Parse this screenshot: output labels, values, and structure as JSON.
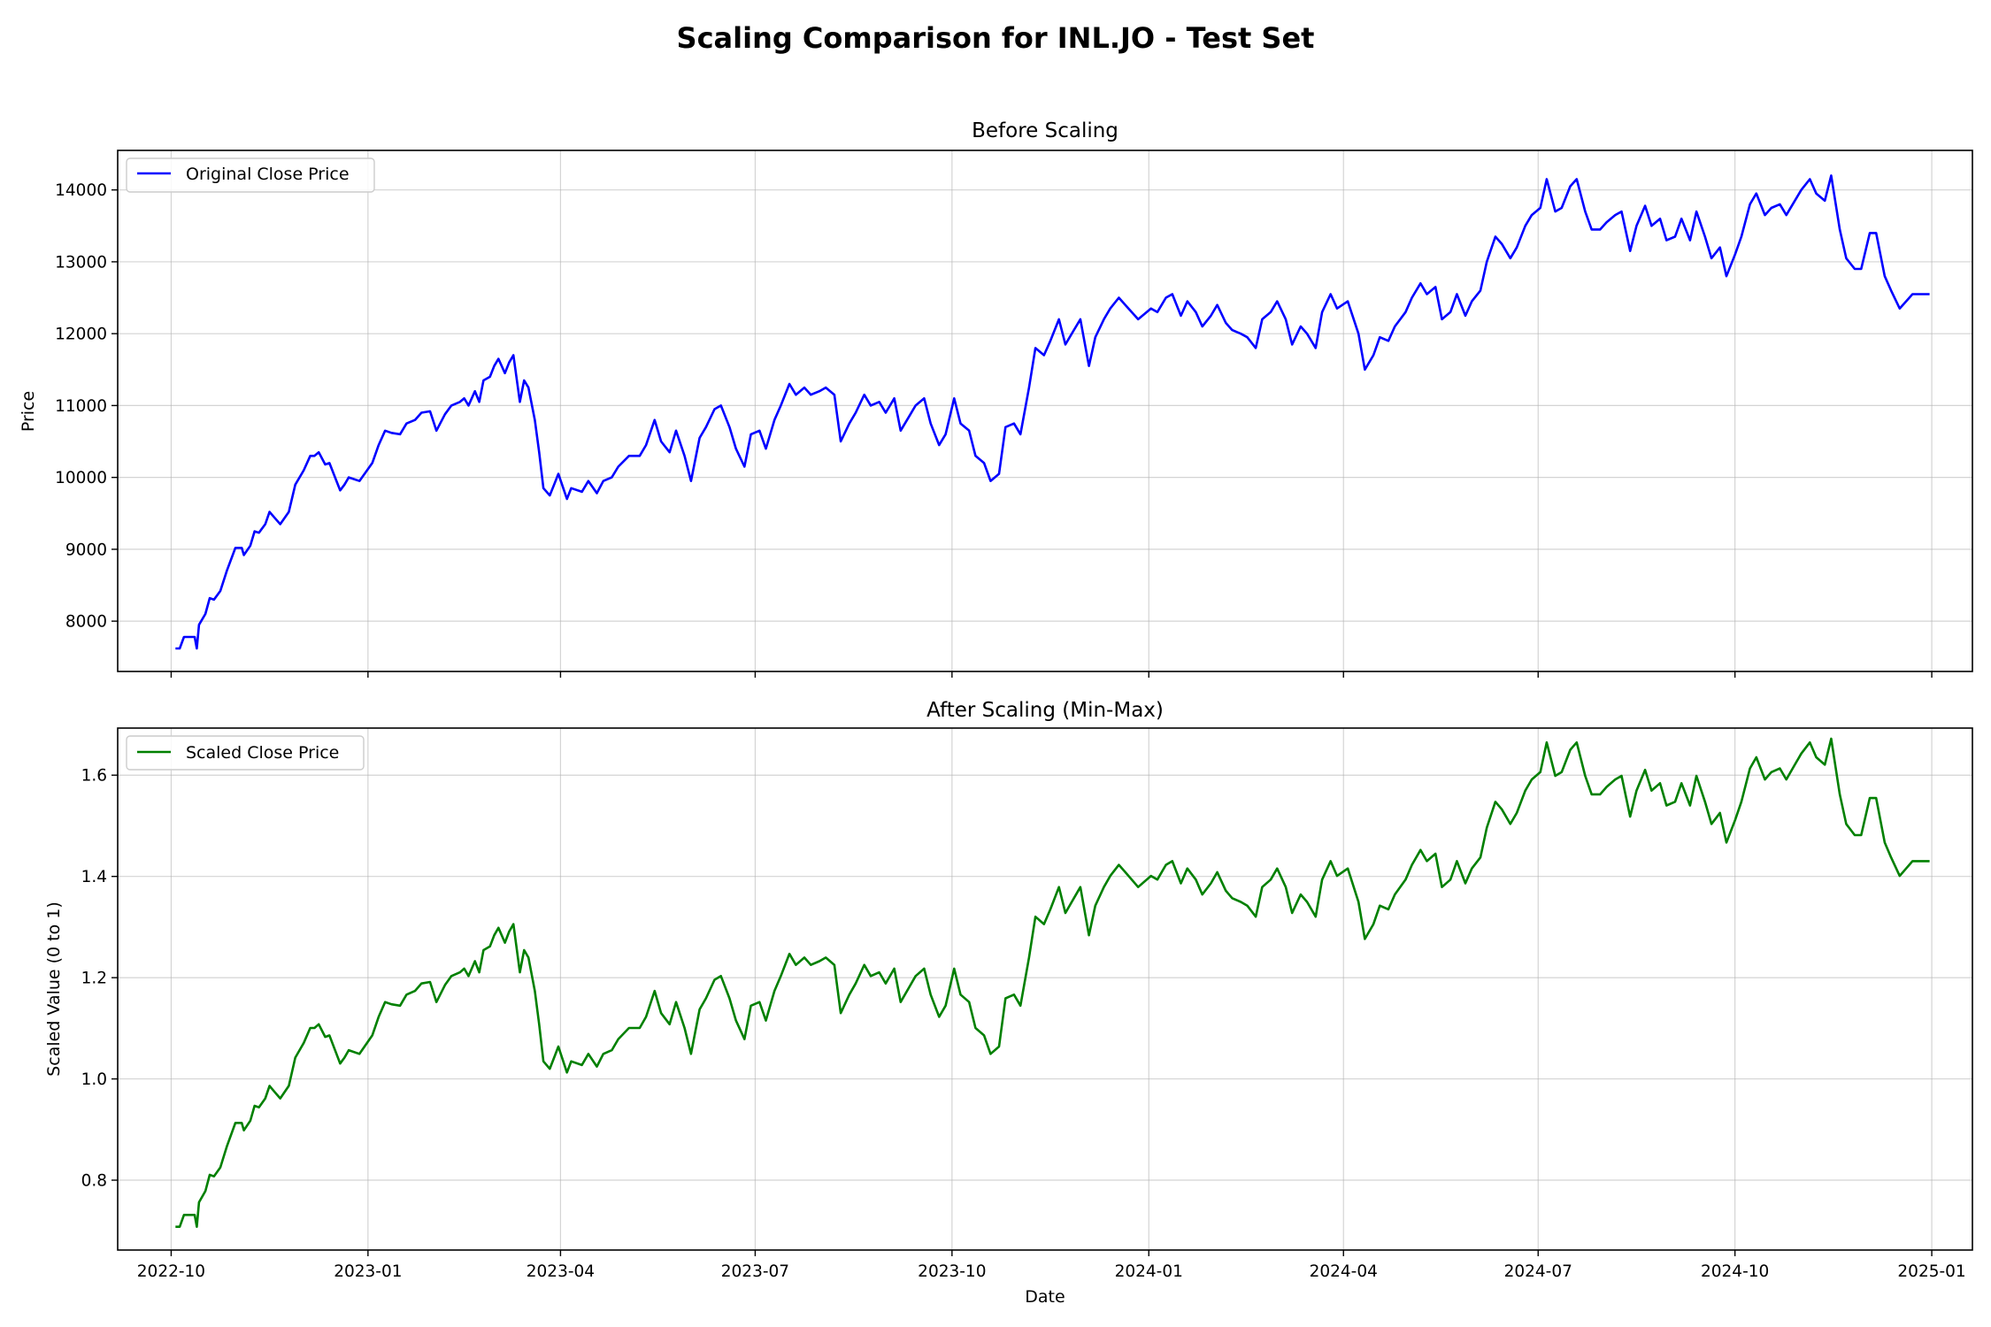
{
  "figure": {
    "title": "Scaling Comparison for INL.JO - Test Set"
  },
  "chart_data": [
    {
      "type": "line",
      "title": "Before Scaling",
      "xlabel": "",
      "ylabel": "Price",
      "grid": true,
      "legend_position": "top-left",
      "ylim": [
        7300,
        14550
      ],
      "yticks": [
        8000,
        9000,
        10000,
        11000,
        12000,
        13000,
        14000
      ],
      "xlim": [
        "2022-09-06",
        "2025-01-20"
      ],
      "xticks": [
        "2022-10",
        "2023-01",
        "2023-04",
        "2023-07",
        "2023-10",
        "2024-01",
        "2024-04",
        "2024-07",
        "2024-10",
        "2025-01"
      ],
      "xticks_dates": [
        "2022-10-01",
        "2023-01-01",
        "2023-04-01",
        "2023-07-01",
        "2023-10-01",
        "2024-01-01",
        "2024-04-01",
        "2024-07-01",
        "2024-10-01",
        "2025-01-01"
      ],
      "show_xtick_labels": false,
      "series": [
        {
          "name": "Original Close Price",
          "color": "#0000ff",
          "x": [
            "2022-10-03",
            "2022-10-05",
            "2022-10-07",
            "2022-10-10",
            "2022-10-12",
            "2022-10-13",
            "2022-10-14",
            "2022-10-17",
            "2022-10-19",
            "2022-10-21",
            "2022-10-24",
            "2022-10-27",
            "2022-10-31",
            "2022-11-03",
            "2022-11-04",
            "2022-11-07",
            "2022-11-09",
            "2022-11-11",
            "2022-11-14",
            "2022-11-16",
            "2022-11-18",
            "2022-11-21",
            "2022-11-25",
            "2022-11-28",
            "2022-12-01",
            "2022-12-02",
            "2022-12-05",
            "2022-12-07",
            "2022-12-09",
            "2022-12-12",
            "2022-12-14",
            "2022-12-19",
            "2022-12-21",
            "2022-12-23",
            "2022-12-28",
            "2023-01-03",
            "2023-01-06",
            "2023-01-09",
            "2023-01-12",
            "2023-01-16",
            "2023-01-19",
            "2023-01-23",
            "2023-01-26",
            "2023-01-30",
            "2023-02-02",
            "2023-02-06",
            "2023-02-09",
            "2023-02-13",
            "2023-02-15",
            "2023-02-17",
            "2023-02-20",
            "2023-02-22",
            "2023-02-24",
            "2023-02-27",
            "2023-03-01",
            "2023-03-03",
            "2023-03-06",
            "2023-03-08",
            "2023-03-10",
            "2023-03-13",
            "2023-03-15",
            "2023-03-17",
            "2023-03-20",
            "2023-03-22",
            "2023-03-24",
            "2023-03-27",
            "2023-03-29",
            "2023-03-31",
            "2023-04-04",
            "2023-04-06",
            "2023-04-11",
            "2023-04-14",
            "2023-04-18",
            "2023-04-21",
            "2023-04-25",
            "2023-04-28",
            "2023-05-03",
            "2023-05-08",
            "2023-05-11",
            "2023-05-15",
            "2023-05-18",
            "2023-05-22",
            "2023-05-25",
            "2023-05-29",
            "2023-06-01",
            "2023-06-05",
            "2023-06-08",
            "2023-06-12",
            "2023-06-15",
            "2023-06-19",
            "2023-06-22",
            "2023-06-26",
            "2023-06-29",
            "2023-07-03",
            "2023-07-06",
            "2023-07-10",
            "2023-07-13",
            "2023-07-17",
            "2023-07-20",
            "2023-07-24",
            "2023-07-27",
            "2023-07-31",
            "2023-08-03",
            "2023-08-07",
            "2023-08-10",
            "2023-08-14",
            "2023-08-17",
            "2023-08-21",
            "2023-08-24",
            "2023-08-28",
            "2023-08-31",
            "2023-09-04",
            "2023-09-07",
            "2023-09-11",
            "2023-09-14",
            "2023-09-18",
            "2023-09-21",
            "2023-09-25",
            "2023-09-28",
            "2023-10-02",
            "2023-10-05",
            "2023-10-09",
            "2023-10-12",
            "2023-10-16",
            "2023-10-19",
            "2023-10-23",
            "2023-10-26",
            "2023-10-30",
            "2023-11-02",
            "2023-11-06",
            "2023-11-09",
            "2023-11-13",
            "2023-11-16",
            "2023-11-20",
            "2023-11-23",
            "2023-11-27",
            "2023-11-30",
            "2023-12-04",
            "2023-12-07",
            "2023-12-11",
            "2023-12-14",
            "2023-12-18",
            "2023-12-21",
            "2023-12-27",
            "2024-01-02",
            "2024-01-05",
            "2024-01-09",
            "2024-01-12",
            "2024-01-16",
            "2024-01-19",
            "2024-01-23",
            "2024-01-26",
            "2024-01-30",
            "2024-02-02",
            "2024-02-06",
            "2024-02-09",
            "2024-02-13",
            "2024-02-16",
            "2024-02-20",
            "2024-02-23",
            "2024-02-27",
            "2024-03-01",
            "2024-03-05",
            "2024-03-08",
            "2024-03-12",
            "2024-03-15",
            "2024-03-19",
            "2024-03-22",
            "2024-03-26",
            "2024-03-29",
            "2024-04-03",
            "2024-04-08",
            "2024-04-11",
            "2024-04-15",
            "2024-04-18",
            "2024-04-22",
            "2024-04-25",
            "2024-04-30",
            "2024-05-03",
            "2024-05-07",
            "2024-05-10",
            "2024-05-14",
            "2024-05-17",
            "2024-05-21",
            "2024-05-24",
            "2024-05-28",
            "2024-05-31",
            "2024-06-04",
            "2024-06-07",
            "2024-06-11",
            "2024-06-14",
            "2024-06-18",
            "2024-06-21",
            "2024-06-25",
            "2024-06-28",
            "2024-07-02",
            "2024-07-05",
            "2024-07-09",
            "2024-07-12",
            "2024-07-16",
            "2024-07-19",
            "2024-07-23",
            "2024-07-26",
            "2024-07-30",
            "2024-08-02",
            "2024-08-06",
            "2024-08-09",
            "2024-08-13",
            "2024-08-16",
            "2024-08-20",
            "2024-08-23",
            "2024-08-27",
            "2024-08-30",
            "2024-09-03",
            "2024-09-06",
            "2024-09-10",
            "2024-09-13",
            "2024-09-17",
            "2024-09-20",
            "2024-09-24",
            "2024-09-27",
            "2024-10-01",
            "2024-10-04",
            "2024-10-08",
            "2024-10-11",
            "2024-10-15",
            "2024-10-18",
            "2024-10-22",
            "2024-10-25",
            "2024-10-29",
            "2024-11-01",
            "2024-11-05",
            "2024-11-08",
            "2024-11-12",
            "2024-11-15",
            "2024-11-19",
            "2024-11-22",
            "2024-11-26",
            "2024-11-29",
            "2024-12-03",
            "2024-12-06",
            "2024-12-10",
            "2024-12-13",
            "2024-12-17",
            "2024-12-20",
            "2024-12-23",
            "2024-12-27",
            "2024-12-31"
          ],
          "y": [
            7620,
            7620,
            7780,
            7780,
            7780,
            7620,
            7950,
            8100,
            8320,
            8300,
            8420,
            8700,
            9020,
            9020,
            8920,
            9050,
            9250,
            9230,
            9350,
            9520,
            9450,
            9350,
            9520,
            9900,
            10050,
            10100,
            10300,
            10300,
            10350,
            10180,
            10200,
            9820,
            9900,
            10000,
            9950,
            10200,
            10450,
            10650,
            10620,
            10600,
            10750,
            10800,
            10900,
            10920,
            10650,
            10880,
            11000,
            11050,
            11100,
            11000,
            11200,
            11050,
            11350,
            11400,
            11550,
            11650,
            11450,
            11600,
            11700,
            11050,
            11350,
            11250,
            10800,
            10350,
            9850,
            9750,
            9900,
            10050,
            9700,
            9850,
            9800,
            9950,
            9780,
            9950,
            10000,
            10150,
            10300,
            10300,
            10450,
            10800,
            10500,
            10350,
            10650,
            10300,
            9950,
            10550,
            10700,
            10950,
            11000,
            10700,
            10400,
            10150,
            10600,
            10650,
            10400,
            10800,
            11000,
            11300,
            11150,
            11250,
            11150,
            11200,
            11250,
            11150,
            10500,
            10750,
            10900,
            11150,
            11000,
            11050,
            10900,
            11100,
            10650,
            10850,
            11000,
            11100,
            10750,
            10450,
            10600,
            11100,
            10750,
            10650,
            10300,
            10200,
            9950,
            10050,
            10700,
            10750,
            10600,
            11250,
            11800,
            11700,
            11900,
            12200,
            11850,
            12050,
            12200,
            11550,
            11950,
            12200,
            12350,
            12500,
            12400,
            12200,
            12350,
            12300,
            12500,
            12550,
            12250,
            12450,
            12300,
            12100,
            12250,
            12400,
            12150,
            12050,
            12000,
            11950,
            11800,
            12200,
            12300,
            12450,
            12200,
            11850,
            12100,
            12000,
            11800,
            12300,
            12550,
            12350,
            12450,
            12000,
            11500,
            11700,
            11950,
            11900,
            12100,
            12300,
            12500,
            12700,
            12550,
            12650,
            12200,
            12300,
            12550,
            12250,
            12450,
            12600,
            13000,
            13350,
            13250,
            13050,
            13200,
            13500,
            13650,
            13750,
            14150,
            13700,
            13750,
            14050,
            14150,
            13700,
            13450,
            13450,
            13550,
            13650,
            13700,
            13150,
            13500,
            13780,
            13500,
            13600,
            13300,
            13350,
            13600,
            13300,
            13700,
            13350,
            13050,
            13200,
            12800,
            13100,
            13350,
            13800,
            13950,
            13650,
            13750,
            13800,
            13650,
            13850,
            14000,
            14150,
            13950,
            13850,
            14200,
            13450,
            13050,
            12900,
            12900,
            13400,
            13400,
            12800,
            12600,
            12350,
            12450,
            12550,
            12550,
            12550
          ]
        }
      ]
    },
    {
      "type": "line",
      "title": "After Scaling (Min-Max)",
      "xlabel": "Date",
      "ylabel": "Scaled Value (0 to 1)",
      "grid": true,
      "legend_position": "top-left",
      "ylim": [
        0.662,
        1.693
      ],
      "yticks": [
        0.8,
        1.0,
        1.2,
        1.4,
        1.6
      ],
      "ytick_labels": [
        "0.8",
        "1.0",
        "1.2",
        "1.4",
        "1.6"
      ],
      "xlim": [
        "2022-09-06",
        "2025-01-20"
      ],
      "xticks": [
        "2022-10",
        "2023-01",
        "2023-04",
        "2023-07",
        "2023-10",
        "2024-01",
        "2024-04",
        "2024-07",
        "2024-10",
        "2025-01"
      ],
      "xticks_dates": [
        "2022-10-01",
        "2023-01-01",
        "2023-04-01",
        "2023-07-01",
        "2023-10-01",
        "2024-01-01",
        "2024-04-01",
        "2024-07-01",
        "2024-10-01",
        "2025-01-01"
      ],
      "show_xtick_labels": true,
      "series": [
        {
          "name": "Scaled Close Price",
          "color": "#008000",
          "x_same_as_chart_index": 0,
          "transform": {
            "value_at_7620": 0.708,
            "value_per_1000": 0.1465
          }
        }
      ]
    }
  ]
}
